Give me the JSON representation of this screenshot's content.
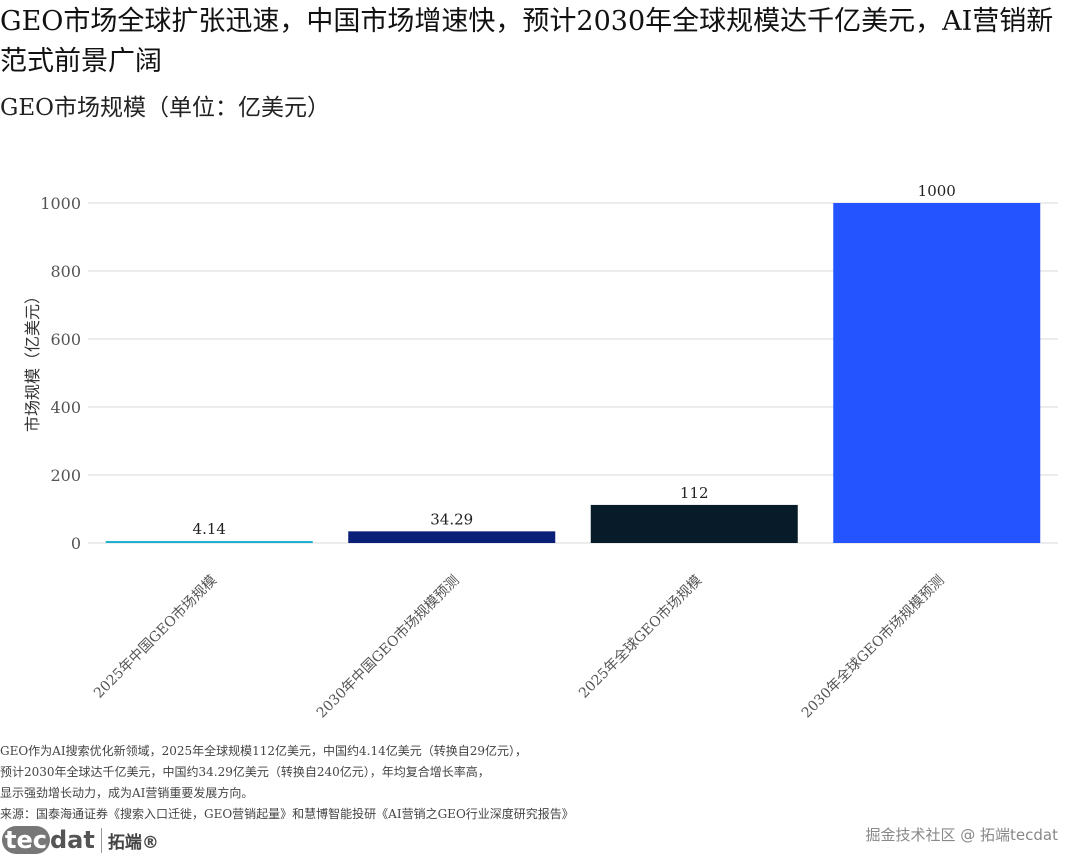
{
  "title": "GEO市场全球扩张迅速，中国市场增速快，预计2030年全球规模达千亿美元，AI营销新范式前景广阔",
  "subtitle": "GEO市场规模（单位：亿美元）",
  "chart_data": {
    "type": "bar",
    "categories": [
      "2025年中国GEO市场规模",
      "2030年中国GEO市场规模预测",
      "2025年全球GEO市场规模",
      "2030年全球GEO市场规模预测"
    ],
    "values": [
      4.14,
      34.29,
      112,
      1000
    ],
    "data_labels": [
      "4.14",
      "34.29",
      "112",
      "1000"
    ],
    "colors": [
      "#1fb3d1",
      "#0a1f78",
      "#071c28",
      "#2454ff"
    ],
    "ylabel": "市场规模（亿美元）",
    "xlabel": "",
    "ylim": [
      0,
      1000
    ],
    "yticks": [
      0,
      200,
      400,
      600,
      800,
      1000
    ],
    "grid": true,
    "legend": "none"
  },
  "notes": [
    "GEO作为AI搜索优化新领域，2025年全球规模112亿美元，中国约4.14亿美元（转换自29亿元），",
    "预计2030年全球达千亿美元，中国约34.29亿美元（转换自240亿元），年均复合增长率高，",
    "显示强劲增长动力，成为AI营销重要发展方向。",
    "来源：国泰海通证券《搜索入口迁徙，GEO营销起量》和慧博智能投研《AI营销之GEO行业深度研究报告》"
  ],
  "logo": {
    "tec": "tec",
    "dat": "dat",
    "cn": "拓端®"
  },
  "watermark": "掘金技术社区 @ 拓端tecdat"
}
